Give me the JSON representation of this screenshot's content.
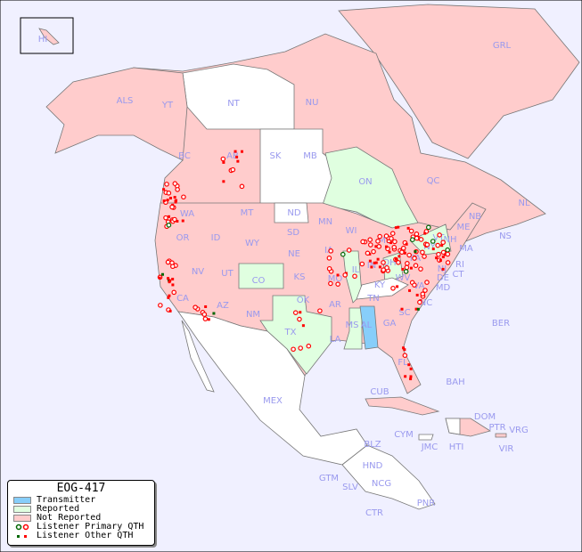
{
  "legend": {
    "title": "EOG-417",
    "items": [
      {
        "label": "Transmitter",
        "color": "#87cefa"
      },
      {
        "label": "Reported",
        "color": "#e0ffe0"
      },
      {
        "label": "Not Reported",
        "color": "#ffcccc"
      },
      {
        "label": "Listener Primary QTH",
        "marker": "circle",
        "colors": [
          "#006600",
          "#ff0000"
        ]
      },
      {
        "label": "Listener Other QTH",
        "marker": "square",
        "colors": [
          "#006600",
          "#ff0000"
        ]
      }
    ]
  },
  "colors": {
    "background": "#f0f0ff",
    "transmitter": "#87cefa",
    "reported": "#e0ffe0",
    "not_reported": "#ffcccc",
    "no_data": "#ffffff",
    "label": "#9999ee"
  },
  "regions": [
    {
      "label": "HI",
      "status": "not_reported"
    },
    {
      "label": "GRL",
      "status": "not_reported"
    },
    {
      "label": "ALS",
      "status": "not_reported"
    },
    {
      "label": "YT",
      "status": "not_reported"
    },
    {
      "label": "NT",
      "status": "none"
    },
    {
      "label": "NU",
      "status": "not_reported"
    },
    {
      "label": "BC",
      "status": "not_reported"
    },
    {
      "label": "AB",
      "status": "not_reported"
    },
    {
      "label": "SK",
      "status": "none"
    },
    {
      "label": "MB",
      "status": "none"
    },
    {
      "label": "ON",
      "status": "reported"
    },
    {
      "label": "QC",
      "status": "not_reported"
    },
    {
      "label": "NL",
      "status": "not_reported"
    },
    {
      "label": "NB",
      "status": "not_reported"
    },
    {
      "label": "NS",
      "status": "not_reported"
    },
    {
      "label": "WA",
      "status": "not_reported"
    },
    {
      "label": "OR",
      "status": "not_reported"
    },
    {
      "label": "ID",
      "status": "not_reported"
    },
    {
      "label": "MT",
      "status": "not_reported"
    },
    {
      "label": "WY",
      "status": "not_reported"
    },
    {
      "label": "ND",
      "status": "none"
    },
    {
      "label": "SD",
      "status": "not_reported"
    },
    {
      "label": "NE",
      "status": "not_reported"
    },
    {
      "label": "MN",
      "status": "not_reported"
    },
    {
      "label": "WI",
      "status": "not_reported"
    },
    {
      "label": "IA",
      "status": "not_reported"
    },
    {
      "label": "MI",
      "status": "not_reported"
    },
    {
      "label": "IL",
      "status": "reported"
    },
    {
      "label": "IN",
      "status": "not_reported"
    },
    {
      "label": "OH",
      "status": "reported"
    },
    {
      "label": "PA",
      "status": "not_reported"
    },
    {
      "label": "NY",
      "status": "reported"
    },
    {
      "label": "VT",
      "status": "not_reported"
    },
    {
      "label": "NH",
      "status": "not_reported"
    },
    {
      "label": "ME",
      "status": "not_reported"
    },
    {
      "label": "MA",
      "status": "not_reported"
    },
    {
      "label": "RI",
      "status": "not_reported"
    },
    {
      "label": "CT",
      "status": "not_reported"
    },
    {
      "label": "NJ",
      "status": "not_reported"
    },
    {
      "label": "DE",
      "status": "not_reported"
    },
    {
      "label": "MD",
      "status": "not_reported"
    },
    {
      "label": "VA",
      "status": "not_reported"
    },
    {
      "label": "WV",
      "status": "not_reported"
    },
    {
      "label": "KY",
      "status": "none"
    },
    {
      "label": "TN",
      "status": "not_reported"
    },
    {
      "label": "NC",
      "status": "not_reported"
    },
    {
      "label": "SC",
      "status": "not_reported"
    },
    {
      "label": "GA",
      "status": "not_reported"
    },
    {
      "label": "AL",
      "status": "transmitter"
    },
    {
      "label": "MS",
      "status": "reported"
    },
    {
      "label": "LA",
      "status": "not_reported"
    },
    {
      "label": "AR",
      "status": "not_reported"
    },
    {
      "label": "MO",
      "status": "not_reported"
    },
    {
      "label": "KS",
      "status": "not_reported"
    },
    {
      "label": "OK",
      "status": "not_reported"
    },
    {
      "label": "TX",
      "status": "reported"
    },
    {
      "label": "NM",
      "status": "not_reported"
    },
    {
      "label": "AZ",
      "status": "not_reported"
    },
    {
      "label": "UT",
      "status": "not_reported"
    },
    {
      "label": "NV",
      "status": "not_reported"
    },
    {
      "label": "CA",
      "status": "not_reported"
    },
    {
      "label": "CO",
      "status": "reported"
    },
    {
      "label": "FL",
      "status": "not_reported"
    },
    {
      "label": "MEX",
      "status": "none"
    },
    {
      "label": "CUB",
      "status": "not_reported"
    },
    {
      "label": "BAH",
      "status": "not_reported"
    },
    {
      "label": "DOM",
      "status": "not_reported"
    },
    {
      "label": "PTR",
      "status": "not_reported"
    },
    {
      "label": "VRG",
      "status": "none"
    },
    {
      "label": "HTI",
      "status": "none"
    },
    {
      "label": "JMC",
      "status": "none"
    },
    {
      "label": "CYM",
      "status": "none"
    },
    {
      "label": "VIR",
      "status": "none"
    },
    {
      "label": "BLZ",
      "status": "none"
    },
    {
      "label": "GTM",
      "status": "none"
    },
    {
      "label": "HND",
      "status": "none"
    },
    {
      "label": "SLV",
      "status": "none"
    },
    {
      "label": "NCG",
      "status": "none"
    },
    {
      "label": "CTR",
      "status": "none"
    },
    {
      "label": "PNR",
      "status": "none"
    },
    {
      "label": "BER",
      "status": "none"
    }
  ]
}
